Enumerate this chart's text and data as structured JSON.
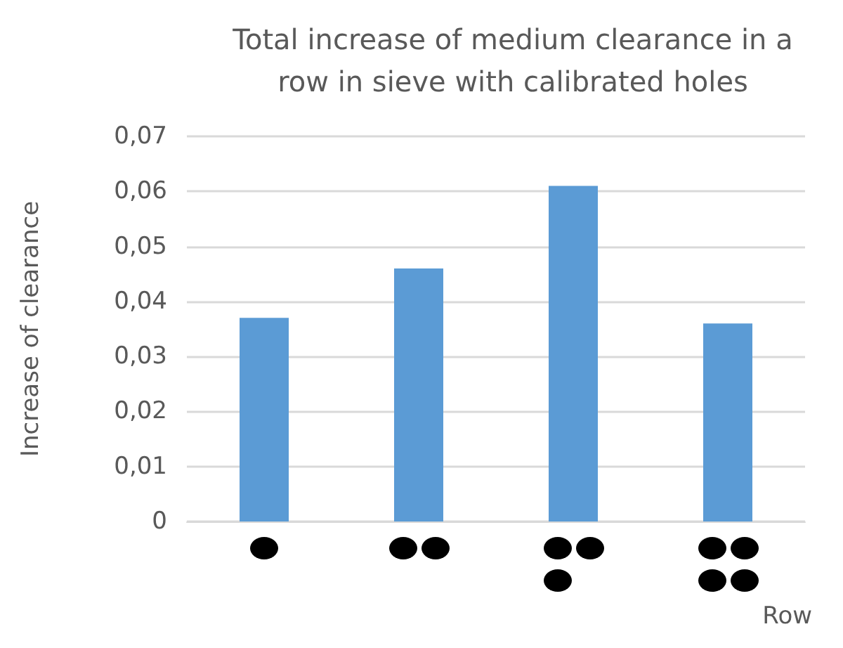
{
  "chart_data": {
    "type": "bar",
    "title": "Total increase of medium clearance in a\nrow in sieve with calibrated holes",
    "xlabel": "Row",
    "ylabel": "Increase of clearance",
    "categories": [
      null,
      null,
      null,
      null
    ],
    "values": [
      0.037,
      0.046,
      0.061,
      0.036
    ],
    "color": "#5b9bd5",
    "ylim": [
      0,
      0.07
    ],
    "yticks": [
      0,
      {
        "value": 0.01,
        "label": "0,01"
      },
      {
        "value": 0.02,
        "label": "0,02"
      },
      {
        "value": 0.03,
        "label": "0,03"
      },
      {
        "value": 0.04,
        "label": "0,04"
      },
      {
        "value": 0.05,
        "label": "0,05"
      },
      {
        "value": 0.06,
        "label": "0,06"
      },
      {
        "value": 0.07,
        "label": "0,07"
      }
    ],
    "grid": "y"
  }
}
